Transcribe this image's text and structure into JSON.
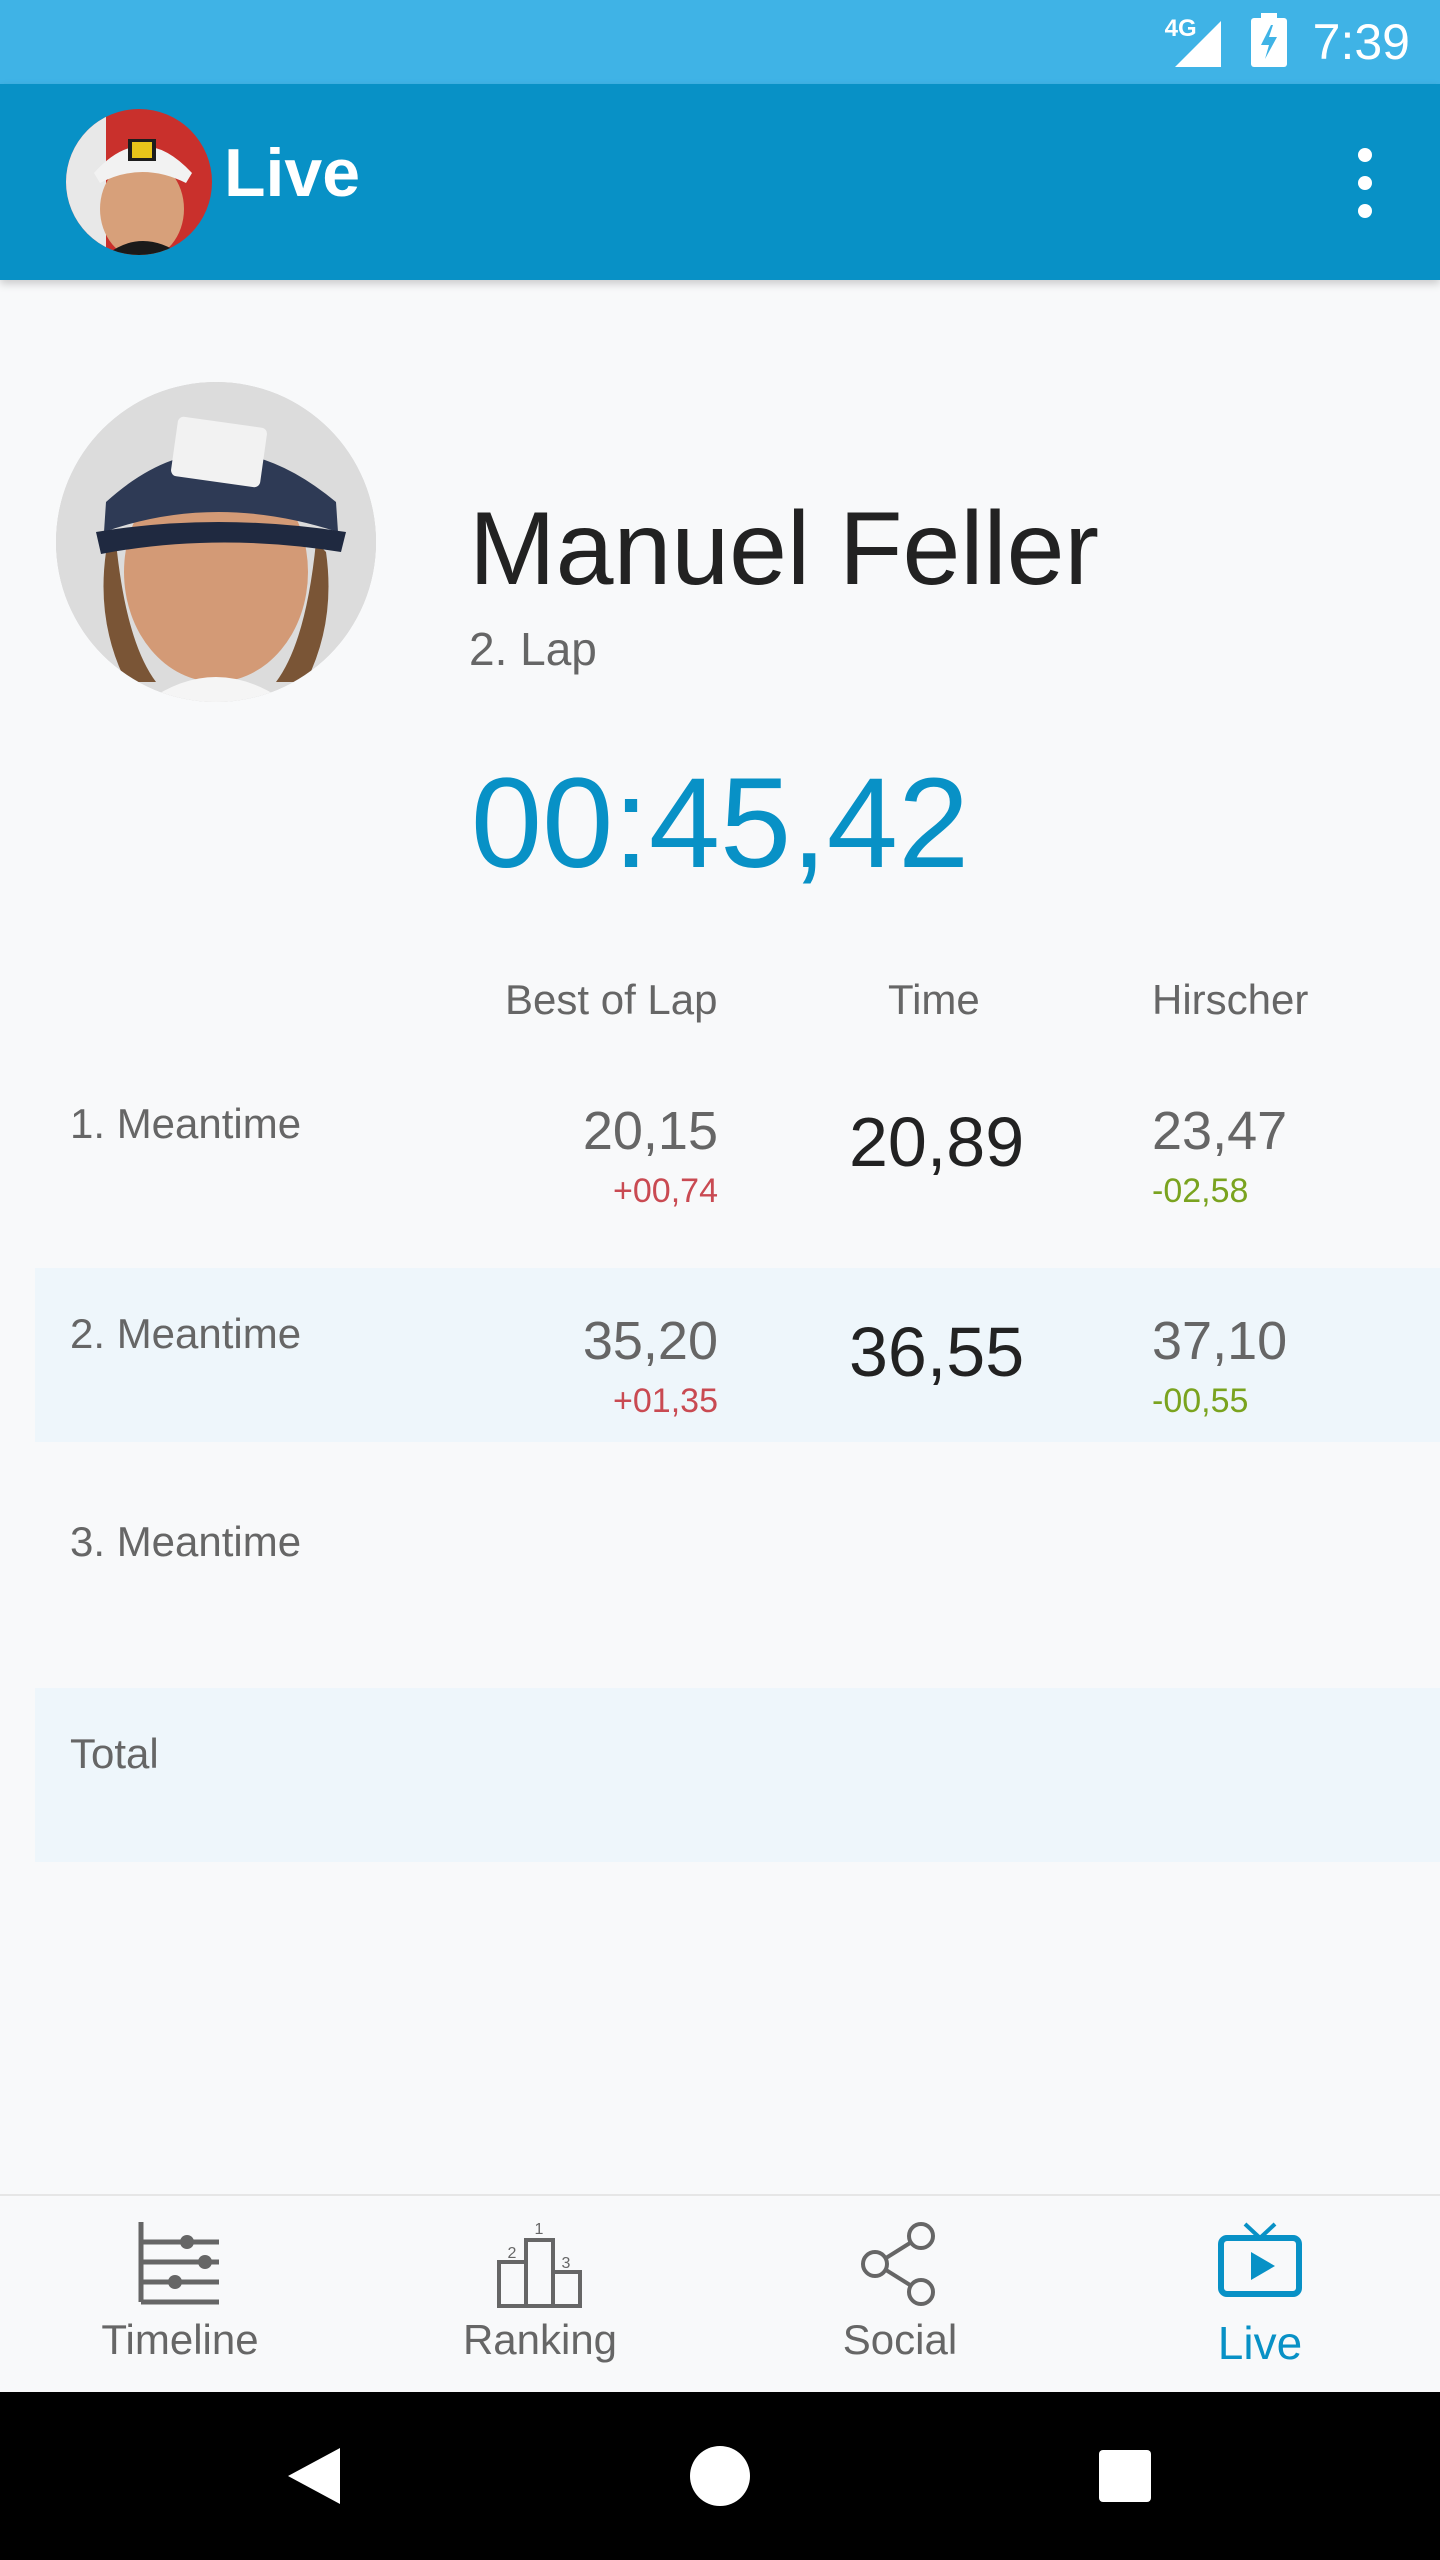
{
  "status": {
    "network": "4G",
    "time": "7:39"
  },
  "appbar": {
    "title": "Live",
    "menu_icon": "more-vert-icon"
  },
  "athlete": {
    "name": "Manuel Feller",
    "lap": "2. Lap",
    "current_time": "00:45,42"
  },
  "table": {
    "headers": [
      "Best of Lap",
      "Time",
      "Hirscher"
    ],
    "rows": [
      {
        "label": "1. Meantime",
        "best": "20,15",
        "best_delta": "+00,74",
        "time": "20,89",
        "hirscher": "23,47",
        "hirscher_delta": "-02,58"
      },
      {
        "label": "2. Meantime",
        "best": "35,20",
        "best_delta": "+01,35",
        "time": "36,55",
        "hirscher": "37,10",
        "hirscher_delta": "-00,55"
      },
      {
        "label": "3. Meantime"
      },
      {
        "label": "Total"
      }
    ]
  },
  "colors": {
    "accent": "#0891c6",
    "status_bar": "#3fb3e6",
    "negative": "#c94a52",
    "positive": "#7aa31f",
    "alt_row": "#eef6fb"
  },
  "nav": {
    "items": [
      {
        "label": "Timeline",
        "icon": "timeline-icon"
      },
      {
        "label": "Ranking",
        "icon": "podium-icon"
      },
      {
        "label": "Social",
        "icon": "share-icon"
      },
      {
        "label": "Live",
        "icon": "live-tv-icon",
        "active": true
      }
    ]
  },
  "system_nav": {
    "back": "back-icon",
    "home": "home-icon",
    "recents": "recents-icon"
  }
}
